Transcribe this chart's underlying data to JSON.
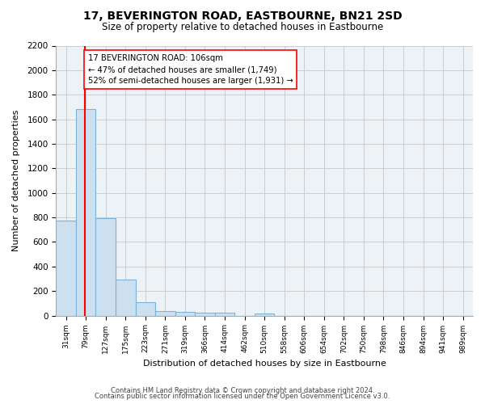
{
  "title": "17, BEVERINGTON ROAD, EASTBOURNE, BN21 2SD",
  "subtitle": "Size of property relative to detached houses in Eastbourne",
  "xlabel": "Distribution of detached houses by size in Eastbourne",
  "ylabel": "Number of detached properties",
  "footer_line1": "Contains HM Land Registry data © Crown copyright and database right 2024.",
  "footer_line2": "Contains public sector information licensed under the Open Government Licence v3.0.",
  "bin_labels": [
    "31sqm",
    "79sqm",
    "127sqm",
    "175sqm",
    "223sqm",
    "271sqm",
    "319sqm",
    "366sqm",
    "414sqm",
    "462sqm",
    "510sqm",
    "558sqm",
    "606sqm",
    "654sqm",
    "702sqm",
    "750sqm",
    "798sqm",
    "846sqm",
    "894sqm",
    "941sqm",
    "989sqm"
  ],
  "bar_values": [
    775,
    1680,
    795,
    295,
    110,
    35,
    28,
    22,
    22,
    0,
    20,
    0,
    0,
    0,
    0,
    0,
    0,
    0,
    0,
    0,
    0
  ],
  "bar_color": "#cce0f0",
  "bar_edge_color": "#7ab4d8",
  "ylim": [
    0,
    2200
  ],
  "yticks": [
    0,
    200,
    400,
    600,
    800,
    1000,
    1200,
    1400,
    1600,
    1800,
    2000,
    2200
  ],
  "red_line_x": 1.45,
  "annotation_title": "17 BEVERINGTON ROAD: 106sqm",
  "annotation_line1": "← 47% of detached houses are smaller (1,749)",
  "annotation_line2": "52% of semi-detached houses are larger (1,931) →",
  "grid_color": "#c8c8c8",
  "background_color": "#edf2f7"
}
